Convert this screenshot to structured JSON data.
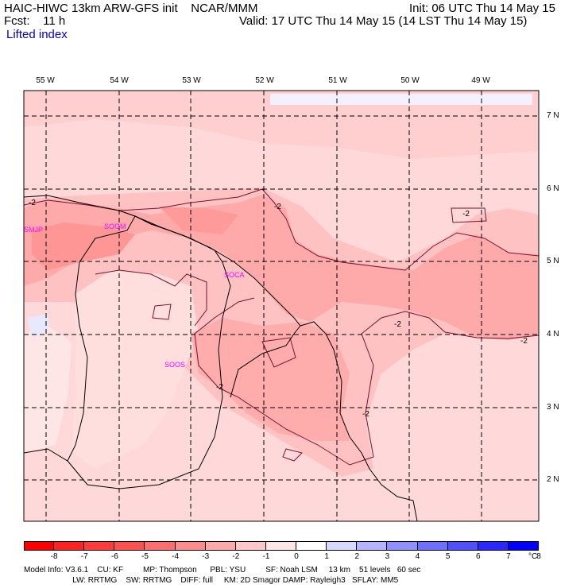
{
  "header": {
    "model_line": "HAIC-HIWC 13km ARW-GFS init    NCAR/MMM",
    "forecast_line": "Fcst:    11 h",
    "field_name": "Lifted index",
    "init_line": "Init: 06 UTC Thu 14 May 15",
    "valid_line": "Valid: 17 UTC Thu 14 May 15 (14 LST Thu 14 May 15)"
  },
  "map": {
    "lon_labels": [
      "55 W",
      "54 W",
      "53 W",
      "52 W",
      "51 W",
      "50 W",
      "49 W"
    ],
    "lat_labels": [
      "7 N",
      "6 N",
      "5 N",
      "4 N",
      "3 N",
      "2 N"
    ],
    "stations": [
      "SMJP",
      "SOGM",
      "SOCA",
      "SOOS"
    ],
    "contour_labels": [
      "-2",
      "-2",
      "-2",
      "-2",
      "-2",
      "-2",
      "-2"
    ]
  },
  "colorbar": {
    "labels": [
      "-8",
      "-7",
      "-6",
      "-5",
      "-4",
      "-3",
      "-2",
      "-1",
      "0",
      "1",
      "2",
      "3",
      "4",
      "5",
      "6",
      "7",
      "8"
    ],
    "unit": "°C",
    "colors": [
      "#ff0000",
      "#ff2222",
      "#ff3c3c",
      "#ff5050",
      "#ff6e6e",
      "#ff8c8c",
      "#ffaaaa",
      "#ffc8c8",
      "#ffe6e6",
      "#ffffff",
      "#d8d8ff",
      "#b4b4ff",
      "#9090ff",
      "#6e6eff",
      "#5050ff",
      "#2828ff",
      "#0000ff"
    ]
  },
  "footer": {
    "line1": "Model Info: V3.6.1    CU: KF         MP: Thompson      PBL: YSU         SF: Noah LSM     13 km    51 levels   60 sec",
    "line2": "                      LW: RRTMG    SW: RRTMG    DIFF: full     KM: 2D Smagor DAMP: Rayleigh3   SFLAY: MM5"
  }
}
